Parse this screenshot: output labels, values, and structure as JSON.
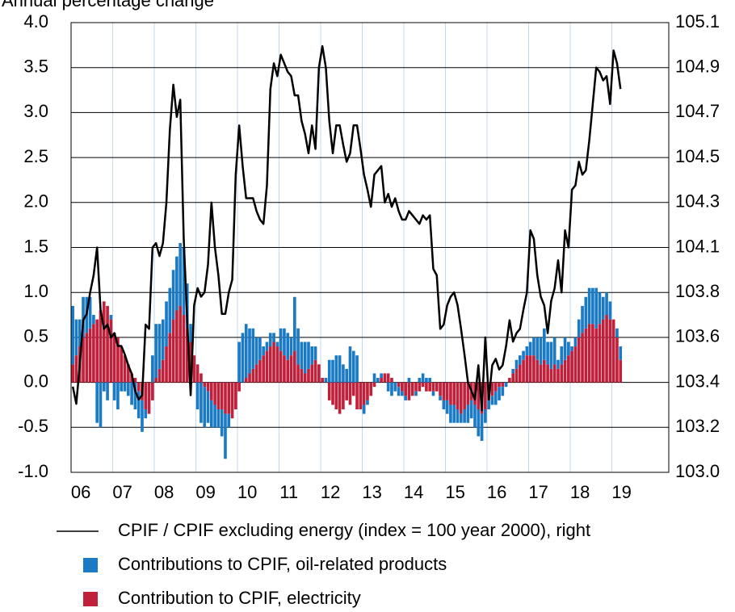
{
  "chart_data": {
    "type": "bar",
    "title": "Annual percentage change",
    "categories": [
      "06",
      null,
      null,
      null,
      null,
      null,
      null,
      null,
      null,
      null,
      null,
      null,
      "07",
      null,
      null,
      null,
      null,
      null,
      null,
      null,
      null,
      null,
      null,
      null,
      "08",
      null,
      null,
      null,
      null,
      null,
      null,
      null,
      null,
      null,
      null,
      null,
      "09",
      null,
      null,
      null,
      null,
      null,
      null,
      null,
      null,
      null,
      null,
      null,
      "10",
      null,
      null,
      null,
      null,
      null,
      null,
      null,
      null,
      null,
      null,
      null,
      "11",
      null,
      null,
      null,
      null,
      null,
      null,
      null,
      null,
      null,
      null,
      null,
      "12",
      null,
      null,
      null,
      null,
      null,
      null,
      null,
      null,
      null,
      null,
      null,
      "13",
      null,
      null,
      null,
      null,
      null,
      null,
      null,
      null,
      null,
      null,
      null,
      "14",
      null,
      null,
      null,
      null,
      null,
      null,
      null,
      null,
      null,
      null,
      null,
      "15",
      null,
      null,
      null,
      null,
      null,
      null,
      null,
      null,
      null,
      null,
      null,
      "16",
      null,
      null,
      null,
      null,
      null,
      null,
      null,
      null,
      null,
      null,
      null,
      "17",
      null,
      null,
      null,
      null,
      null,
      null,
      null,
      null,
      null,
      null,
      null,
      "18",
      null,
      null,
      null,
      null,
      null,
      null,
      null,
      null,
      null,
      null,
      null,
      "19",
      null,
      null
    ],
    "series": [
      {
        "name": "CPIF / CPIF excluding energy (index = 100 year 2000), right",
        "type": "line",
        "axis": "y2",
        "color": "#000000",
        "values": [
          103.4,
          103.32,
          103.5,
          103.71,
          103.74,
          103.84,
          103.92,
          104.05,
          103.76,
          103.67,
          103.69,
          103.63,
          103.65,
          103.59,
          103.59,
          103.55,
          103.5,
          103.46,
          103.38,
          103.34,
          103.36,
          103.69,
          103.67,
          104.05,
          104.07,
          104.01,
          104.07,
          104.26,
          104.6,
          104.81,
          104.66,
          104.74,
          104.09,
          103.71,
          103.36,
          103.78,
          103.86,
          103.82,
          103.84,
          103.97,
          104.26,
          104.05,
          103.92,
          103.74,
          103.74,
          103.84,
          103.9,
          104.39,
          104.62,
          104.43,
          104.28,
          104.28,
          104.28,
          104.22,
          104.18,
          104.16,
          104.34,
          104.79,
          104.91,
          104.85,
          104.95,
          104.91,
          104.87,
          104.85,
          104.76,
          104.76,
          104.64,
          104.58,
          104.49,
          104.62,
          104.51,
          104.89,
          104.99,
          104.89,
          104.64,
          104.49,
          104.62,
          104.62,
          104.53,
          104.45,
          104.49,
          104.62,
          104.62,
          104.51,
          104.39,
          104.32,
          104.24,
          104.39,
          104.41,
          104.43,
          104.26,
          104.3,
          104.24,
          104.28,
          104.22,
          104.18,
          104.18,
          104.22,
          104.2,
          104.18,
          104.16,
          104.2,
          104.18,
          104.2,
          103.95,
          103.92,
          103.67,
          103.69,
          103.78,
          103.82,
          103.84,
          103.78,
          103.67,
          103.55,
          103.42,
          103.38,
          103.34,
          103.5,
          103.29,
          103.63,
          103.34,
          103.5,
          103.53,
          103.48,
          103.5,
          103.59,
          103.71,
          103.61,
          103.65,
          103.67,
          103.76,
          103.84,
          104.13,
          104.09,
          103.92,
          103.82,
          103.78,
          103.65,
          103.8,
          103.86,
          103.99,
          103.84,
          104.13,
          104.05,
          104.32,
          104.34,
          104.45,
          104.39,
          104.41,
          104.55,
          104.72,
          104.89,
          104.87,
          104.83,
          104.85,
          104.72,
          104.97,
          104.91,
          104.79
        ]
      },
      {
        "name": "Contributions to CPIF, oil-related products",
        "type": "bar",
        "color": "#1a7ac4",
        "values": [
          0.65,
          0.4,
          0.3,
          0.45,
          0.4,
          0.35,
          0.1,
          -0.45,
          -0.5,
          -0.1,
          -0.2,
          0.05,
          -0.2,
          -0.3,
          -0.1,
          -0.1,
          -0.15,
          -0.25,
          -0.3,
          -0.3,
          -0.35,
          -0.1,
          0.0,
          0.3,
          0.6,
          0.5,
          0.45,
          0.5,
          0.5,
          0.55,
          0.6,
          0.7,
          0.75,
          0.5,
          0.2,
          0.0,
          -0.3,
          -0.45,
          -0.45,
          -0.35,
          -0.3,
          -0.25,
          -0.2,
          -0.3,
          -0.5,
          -0.15,
          0.0,
          0.0,
          0.45,
          0.55,
          0.6,
          0.5,
          0.45,
          0.3,
          0.25,
          0.1,
          0.1,
          0.15,
          0.1,
          0.05,
          0.25,
          0.3,
          0.3,
          0.2,
          0.6,
          0.4,
          0.3,
          0.35,
          0.3,
          0.2,
          0.15,
          0.0,
          0.0,
          0.05,
          0.25,
          0.25,
          0.3,
          0.3,
          0.2,
          0.15,
          0.4,
          0.35,
          0.3,
          0.0,
          -0.1,
          -0.05,
          0.0,
          0.1,
          0.05,
          0.05,
          0.0,
          -0.1,
          -0.15,
          -0.1,
          -0.1,
          -0.05,
          -0.05,
          0.05,
          0.0,
          -0.05,
          0.05,
          0.1,
          0.05,
          0.05,
          -0.05,
          0.0,
          -0.05,
          -0.1,
          -0.15,
          -0.2,
          -0.2,
          -0.15,
          -0.1,
          -0.15,
          -0.2,
          -0.2,
          -0.25,
          -0.3,
          -0.3,
          -0.15,
          -0.1,
          -0.1,
          -0.15,
          -0.15,
          -0.1,
          -0.05,
          0.0,
          0.05,
          0.1,
          0.1,
          0.1,
          0.1,
          0.15,
          0.2,
          0.25,
          0.3,
          0.35,
          0.25,
          0.3,
          0.3,
          0.1,
          0.2,
          0.25,
          0.15,
          0.05,
          0.1,
          0.2,
          0.3,
          0.35,
          0.4,
          0.4,
          0.45,
          0.35,
          0.25,
          0.25,
          0.2,
          0.0,
          0.1,
          0.15
        ]
      },
      {
        "name": "Contribution to CPIF, electricity",
        "type": "bar",
        "color": "#c0203a",
        "values": [
          0.2,
          0.3,
          0.4,
          0.5,
          0.55,
          0.6,
          0.65,
          0.7,
          0.8,
          0.9,
          0.85,
          0.7,
          0.55,
          0.5,
          0.4,
          0.3,
          0.2,
          0.1,
          0.05,
          -0.1,
          -0.2,
          -0.3,
          -0.35,
          -0.2,
          0.05,
          0.15,
          0.25,
          0.4,
          0.55,
          0.7,
          0.8,
          0.85,
          0.75,
          0.6,
          0.45,
          0.3,
          0.2,
          0.1,
          -0.05,
          -0.1,
          -0.2,
          -0.25,
          -0.3,
          -0.3,
          -0.35,
          -0.35,
          -0.4,
          -0.3,
          -0.1,
          0.0,
          0.05,
          0.1,
          0.15,
          0.2,
          0.25,
          0.3,
          0.35,
          0.4,
          0.45,
          0.4,
          0.35,
          0.3,
          0.25,
          0.3,
          0.35,
          0.2,
          0.15,
          0.1,
          0.15,
          0.2,
          0.25,
          0.2,
          0.05,
          0.0,
          -0.2,
          -0.25,
          -0.3,
          -0.35,
          -0.3,
          -0.2,
          -0.25,
          -0.15,
          -0.3,
          -0.3,
          -0.25,
          -0.2,
          -0.15,
          -0.05,
          0.0,
          0.05,
          0.1,
          0.1,
          0.05,
          0.0,
          -0.05,
          -0.1,
          -0.15,
          -0.2,
          -0.15,
          -0.1,
          -0.1,
          -0.05,
          -0.1,
          -0.1,
          -0.1,
          -0.1,
          -0.15,
          -0.2,
          -0.2,
          -0.25,
          -0.25,
          -0.3,
          -0.35,
          -0.3,
          -0.25,
          -0.2,
          -0.25,
          -0.3,
          -0.35,
          -0.3,
          -0.2,
          -0.15,
          -0.1,
          -0.05,
          -0.05,
          0.0,
          0.05,
          0.1,
          0.15,
          0.2,
          0.25,
          0.3,
          0.3,
          0.3,
          0.25,
          0.2,
          0.25,
          0.2,
          0.15,
          0.2,
          0.15,
          0.2,
          0.25,
          0.3,
          0.35,
          0.4,
          0.5,
          0.55,
          0.6,
          0.65,
          0.65,
          0.6,
          0.65,
          0.7,
          0.75,
          0.7,
          0.7,
          0.5,
          0.25
        ]
      }
    ],
    "ylim": [
      -1,
      4
    ],
    "yticks": [
      {
        "value": -1,
        "label": "-1.0"
      },
      -0.5,
      {
        "value": 0,
        "label": "0.0"
      },
      0.5,
      {
        "value": 1,
        "label": "1.0"
      },
      1.5,
      {
        "value": 2,
        "label": "2.0"
      },
      2.5,
      {
        "value": 3,
        "label": "3.0"
      },
      3.5,
      {
        "value": 4,
        "label": "4.0"
      }
    ],
    "y2lim": [
      103,
      105.1
    ],
    "y2ticks": [
      {
        "value": 103,
        "label": "103.0"
      },
      {
        "value": 103.21,
        "label": "103.2"
      },
      {
        "value": 103.42,
        "label": "103.4"
      },
      {
        "value": 103.63,
        "label": "103.6"
      },
      {
        "value": 103.84,
        "label": "103.8"
      },
      {
        "value": 104.05,
        "label": "104.1"
      },
      {
        "value": 104.26,
        "label": "104.3"
      },
      {
        "value": 104.47,
        "label": "104.5"
      },
      {
        "value": 104.68,
        "label": "104.7"
      },
      {
        "value": 104.89,
        "label": "104.9"
      },
      105.1
    ],
    "grid": true,
    "legend": "bottom"
  }
}
